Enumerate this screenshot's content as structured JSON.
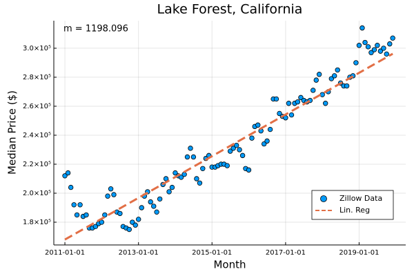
{
  "chart_data": {
    "type": "scatter",
    "title": "Lake Forest, California",
    "xlabel": "Month",
    "ylabel": "Median Price ($)",
    "annotation": "m = 1198.096",
    "xlim": [
      "2010-09-13",
      "2020-04-08"
    ],
    "xticks": [
      "2011-01-01",
      "2013-01-01",
      "2015-01-01",
      "2017-01-01",
      "2019-01-01"
    ],
    "ylim": [
      164300,
      319000
    ],
    "yticks": [
      {
        "value": 180000,
        "label": "1.8×10⁵"
      },
      {
        "value": 200000,
        "label": "2.0×10⁵"
      },
      {
        "value": 220000,
        "label": "2.2×10⁵"
      },
      {
        "value": 240000,
        "label": "2.4×10⁵"
      },
      {
        "value": 260000,
        "label": "2.6×10⁵"
      },
      {
        "value": 280000,
        "label": "2.8×10⁵"
      },
      {
        "value": 300000,
        "label": "3.0×10⁵"
      }
    ],
    "grid": true,
    "legend": "bottom-right",
    "series": [
      {
        "name": "Zillow Data",
        "mode": "markers",
        "color": "#009af9",
        "x": [
          "2011-01-01",
          "2011-02-01",
          "2011-03-01",
          "2011-04-01",
          "2011-05-01",
          "2011-06-01",
          "2011-07-01",
          "2011-08-01",
          "2011-09-01",
          "2011-10-01",
          "2011-11-01",
          "2011-12-01",
          "2012-01-01",
          "2012-02-01",
          "2012-03-01",
          "2012-04-01",
          "2012-05-01",
          "2012-06-01",
          "2012-07-01",
          "2012-08-01",
          "2012-09-01",
          "2012-10-01",
          "2012-11-01",
          "2012-12-01",
          "2013-01-01",
          "2013-02-01",
          "2013-03-01",
          "2013-04-01",
          "2013-05-01",
          "2013-06-01",
          "2013-07-01",
          "2013-08-01",
          "2013-09-01",
          "2013-10-01",
          "2013-11-01",
          "2013-12-01",
          "2014-01-01",
          "2014-02-01",
          "2014-03-01",
          "2014-04-01",
          "2014-05-01",
          "2014-06-01",
          "2014-07-01",
          "2014-08-01",
          "2014-09-01",
          "2014-10-01",
          "2014-11-01",
          "2014-12-01",
          "2015-01-01",
          "2015-02-01",
          "2015-03-01",
          "2015-04-01",
          "2015-05-01",
          "2015-06-01",
          "2015-07-01",
          "2015-08-01",
          "2015-09-01",
          "2015-10-01",
          "2015-11-01",
          "2015-12-01",
          "2016-01-01",
          "2016-02-01",
          "2016-03-01",
          "2016-04-01",
          "2016-05-01",
          "2016-06-01",
          "2016-07-01",
          "2016-08-01",
          "2016-09-01",
          "2016-10-01",
          "2016-11-01",
          "2016-12-01",
          "2017-01-01",
          "2017-02-01",
          "2017-03-01",
          "2017-04-01",
          "2017-05-01",
          "2017-06-01",
          "2017-07-01",
          "2017-08-01",
          "2017-09-01",
          "2017-10-01",
          "2017-11-01",
          "2017-12-01",
          "2018-01-01",
          "2018-02-01",
          "2018-03-01",
          "2018-04-01",
          "2018-05-01",
          "2018-06-01",
          "2018-07-01",
          "2018-08-01",
          "2018-09-01",
          "2018-10-01",
          "2018-11-01",
          "2018-12-01",
          "2019-01-01",
          "2019-02-01",
          "2019-03-01",
          "2019-04-01",
          "2019-05-01",
          "2019-06-01",
          "2019-07-01",
          "2019-08-01",
          "2019-09-01",
          "2019-10-01",
          "2019-11-01",
          "2019-12-01"
        ],
        "values": [
          212000,
          214000,
          204000,
          192000,
          185000,
          192000,
          184000,
          185000,
          176000,
          176000,
          177000,
          179000,
          180000,
          185000,
          198000,
          203000,
          199000,
          187000,
          186000,
          177000,
          176000,
          175000,
          180000,
          178000,
          182000,
          190000,
          198000,
          201000,
          194000,
          191000,
          187000,
          196000,
          206000,
          210000,
          201000,
          204000,
          214000,
          212000,
          211000,
          213000,
          225000,
          231000,
          225000,
          210000,
          207000,
          217000,
          224000,
          226000,
          218000,
          218000,
          219000,
          220000,
          220000,
          219000,
          229000,
          231000,
          233000,
          230000,
          226000,
          217000,
          216000,
          238000,
          246000,
          247000,
          243000,
          234000,
          236000,
          244000,
          265000,
          265000,
          255000,
          253000,
          252000,
          262000,
          254000,
          262000,
          263000,
          266000,
          264000,
          263000,
          264000,
          271000,
          278000,
          282000,
          268000,
          262000,
          270000,
          279000,
          281000,
          285000,
          276000,
          274000,
          274000,
          280000,
          281000,
          290000,
          302000,
          314000,
          304000,
          301000,
          297000,
          299000,
          302000,
          298000,
          300000,
          296000,
          303000,
          307000
        ]
      },
      {
        "name": "Lin. Reg",
        "mode": "dashed-line",
        "color": "#e26f46",
        "x": [
          "2011-01-01",
          "2019-12-01"
        ],
        "values": [
          168000,
          296200
        ]
      }
    ]
  }
}
